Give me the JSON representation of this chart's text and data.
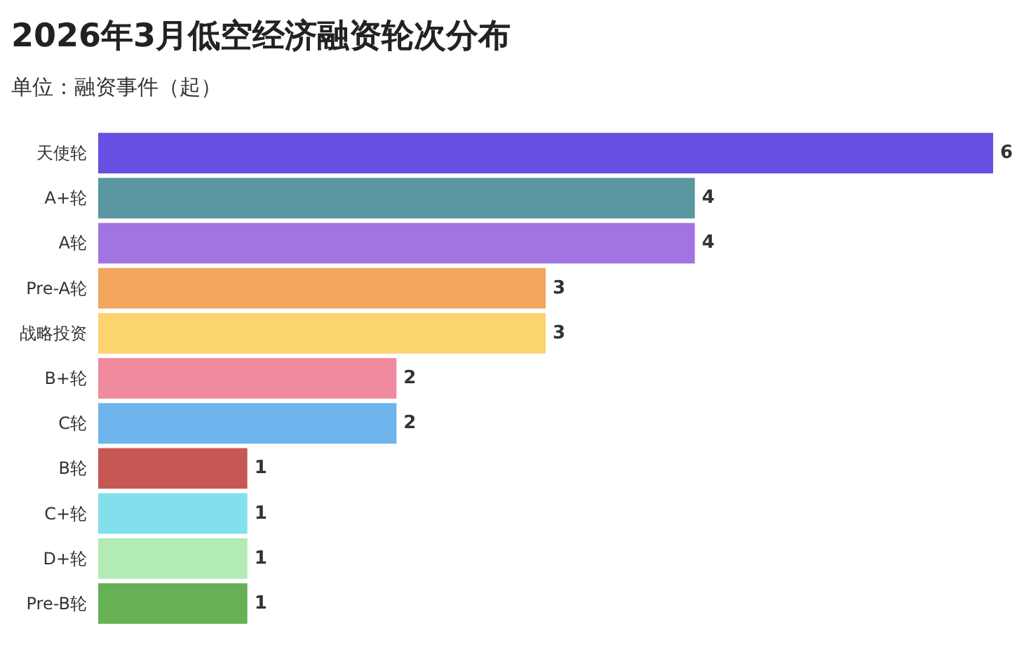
{
  "chart_data": {
    "type": "bar",
    "orientation": "horizontal",
    "title": "2026年3月低空经济融资轮次分布",
    "subtitle": "单位：融资事件（起）",
    "categories": [
      "天使轮",
      "A+轮",
      "A轮",
      "Pre-A轮",
      "战略投资",
      "B+轮",
      "C轮",
      "B轮",
      "C+轮",
      "D+轮",
      "Pre-B轮"
    ],
    "values": [
      6,
      4,
      4,
      3,
      3,
      2,
      2,
      1,
      1,
      1,
      1
    ],
    "colors": [
      "#6650e2",
      "#5a97a0",
      "#a274e2",
      "#f4a65e",
      "#fcd46e",
      "#f08a9e",
      "#6db5ec",
      "#c65752",
      "#82e0ec",
      "#b2ecb4",
      "#66b055"
    ],
    "data_labels": true,
    "grid": false
  }
}
